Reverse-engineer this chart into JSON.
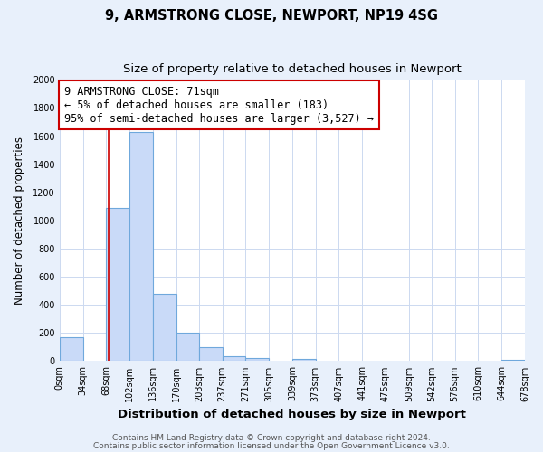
{
  "title1": "9, ARMSTRONG CLOSE, NEWPORT, NP19 4SG",
  "title2": "Size of property relative to detached houses in Newport",
  "xlabel": "Distribution of detached houses by size in Newport",
  "ylabel": "Number of detached properties",
  "bar_bins": [
    0,
    34,
    68,
    102,
    136,
    170,
    203,
    237,
    271,
    305,
    339,
    373,
    407,
    441,
    475,
    509,
    542,
    576,
    610,
    644,
    678
  ],
  "bar_heights": [
    170,
    0,
    1090,
    1630,
    480,
    200,
    100,
    35,
    20,
    0,
    15,
    0,
    0,
    0,
    0,
    0,
    0,
    0,
    0,
    10
  ],
  "bar_color": "#c9daf8",
  "bar_edge_color": "#6fa8dc",
  "red_line_x": 71,
  "ylim": [
    0,
    2000
  ],
  "yticks": [
    0,
    200,
    400,
    600,
    800,
    1000,
    1200,
    1400,
    1600,
    1800,
    2000
  ],
  "xtick_labels": [
    "0sqm",
    "34sqm",
    "68sqm",
    "102sqm",
    "136sqm",
    "170sqm",
    "203sqm",
    "237sqm",
    "271sqm",
    "305sqm",
    "339sqm",
    "373sqm",
    "407sqm",
    "441sqm",
    "475sqm",
    "509sqm",
    "542sqm",
    "576sqm",
    "610sqm",
    "644sqm",
    "678sqm"
  ],
  "annotation_title": "9 ARMSTRONG CLOSE: 71sqm",
  "annotation_line1": "← 5% of detached houses are smaller (183)",
  "annotation_line2": "95% of semi-detached houses are larger (3,527) →",
  "annotation_box_color": "#ffffff",
  "annotation_box_edge": "#cc0000",
  "footer1": "Contains HM Land Registry data © Crown copyright and database right 2024.",
  "footer2": "Contains public sector information licensed under the Open Government Licence v3.0.",
  "bg_color": "#e8f0fb",
  "plot_bg_color": "#ffffff",
  "grid_color": "#ccd9f0",
  "title_fontsize": 10.5,
  "subtitle_fontsize": 9.5,
  "tick_fontsize": 7,
  "footer_fontsize": 6.5,
  "ann_fontsize": 8.5
}
